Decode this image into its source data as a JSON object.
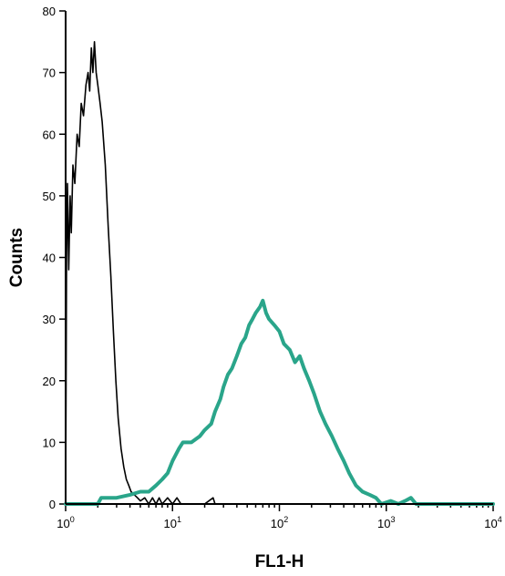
{
  "chart_data": {
    "type": "line",
    "xlabel": "FL1-H",
    "ylabel": "Counts",
    "x_scale": "log",
    "xlim": [
      1,
      10000
    ],
    "ylim": [
      0,
      80
    ],
    "x_ticks": [
      {
        "value": 1,
        "base": "10",
        "exp": "0"
      },
      {
        "value": 10,
        "base": "10",
        "exp": "1"
      },
      {
        "value": 100,
        "base": "10",
        "exp": "2"
      },
      {
        "value": 1000,
        "base": "10",
        "exp": "3"
      },
      {
        "value": 10000,
        "base": "10",
        "exp": "4"
      }
    ],
    "y_ticks": [
      0,
      10,
      20,
      30,
      40,
      50,
      60,
      70,
      80
    ],
    "grid": false,
    "legend": "none",
    "series": [
      {
        "color": "#000000",
        "points": [
          [
            1.0,
            0
          ],
          [
            1.02,
            40
          ],
          [
            1.04,
            52
          ],
          [
            1.07,
            38
          ],
          [
            1.1,
            50
          ],
          [
            1.13,
            44
          ],
          [
            1.17,
            55
          ],
          [
            1.22,
            52
          ],
          [
            1.28,
            60
          ],
          [
            1.34,
            58
          ],
          [
            1.4,
            65
          ],
          [
            1.47,
            63
          ],
          [
            1.55,
            68
          ],
          [
            1.62,
            70
          ],
          [
            1.68,
            67
          ],
          [
            1.74,
            74
          ],
          [
            1.8,
            70
          ],
          [
            1.86,
            75
          ],
          [
            1.93,
            70
          ],
          [
            2.0,
            68
          ],
          [
            2.1,
            65
          ],
          [
            2.2,
            62
          ],
          [
            2.35,
            55
          ],
          [
            2.5,
            45
          ],
          [
            2.65,
            37
          ],
          [
            2.8,
            28
          ],
          [
            2.95,
            20
          ],
          [
            3.1,
            14
          ],
          [
            3.3,
            9
          ],
          [
            3.5,
            6
          ],
          [
            3.7,
            4
          ],
          [
            3.9,
            3
          ],
          [
            4.1,
            2
          ],
          [
            4.4,
            1.5
          ],
          [
            4.7,
            1
          ],
          [
            5.0,
            0.5
          ],
          [
            5.5,
            1
          ],
          [
            6.0,
            0
          ],
          [
            6.5,
            1
          ],
          [
            7.0,
            0
          ],
          [
            7.5,
            1
          ],
          [
            8.0,
            0
          ],
          [
            9.0,
            1
          ],
          [
            10.0,
            0
          ],
          [
            11.0,
            1
          ],
          [
            12.0,
            0
          ],
          [
            20.0,
            0
          ],
          [
            24.0,
            1
          ],
          [
            25.0,
            0
          ],
          [
            40.0,
            0
          ],
          [
            100.0,
            0
          ],
          [
            1000.0,
            0
          ],
          [
            10000.0,
            0
          ]
        ]
      },
      {
        "color": "#2aa58a",
        "points": [
          [
            1.0,
            0
          ],
          [
            2.0,
            0
          ],
          [
            2.15,
            1
          ],
          [
            3.0,
            1
          ],
          [
            4.0,
            1.5
          ],
          [
            5.0,
            2
          ],
          [
            6.0,
            2
          ],
          [
            7.0,
            3
          ],
          [
            8.0,
            4
          ],
          [
            9.0,
            5
          ],
          [
            10.0,
            7
          ],
          [
            11.5,
            9
          ],
          [
            12.5,
            10
          ],
          [
            15.0,
            10
          ],
          [
            18.0,
            11
          ],
          [
            20.0,
            12
          ],
          [
            23.0,
            13
          ],
          [
            25.0,
            15
          ],
          [
            28.0,
            17
          ],
          [
            30.0,
            19
          ],
          [
            33.0,
            21
          ],
          [
            36.0,
            22
          ],
          [
            40.0,
            24
          ],
          [
            44.0,
            26
          ],
          [
            48.0,
            27
          ],
          [
            52.0,
            29
          ],
          [
            56.0,
            30
          ],
          [
            60.0,
            31
          ],
          [
            66.0,
            32
          ],
          [
            70.0,
            33
          ],
          [
            75.0,
            31
          ],
          [
            80.0,
            30
          ],
          [
            90.0,
            29
          ],
          [
            100.0,
            28
          ],
          [
            110.0,
            26
          ],
          [
            125.0,
            25
          ],
          [
            140.0,
            23
          ],
          [
            155.0,
            24
          ],
          [
            170.0,
            22
          ],
          [
            190.0,
            20
          ],
          [
            210.0,
            18
          ],
          [
            240.0,
            15
          ],
          [
            270.0,
            13
          ],
          [
            310.0,
            11
          ],
          [
            350.0,
            9
          ],
          [
            400.0,
            7
          ],
          [
            450.0,
            5
          ],
          [
            520.0,
            3
          ],
          [
            600.0,
            2
          ],
          [
            700.0,
            1.5
          ],
          [
            800.0,
            1
          ],
          [
            900.0,
            0
          ],
          [
            1100.0,
            0.5
          ],
          [
            1300.0,
            0
          ],
          [
            1500.0,
            0.5
          ],
          [
            1700.0,
            1
          ],
          [
            1900.0,
            0
          ],
          [
            3000.0,
            0
          ],
          [
            10000.0,
            0
          ]
        ]
      }
    ]
  }
}
